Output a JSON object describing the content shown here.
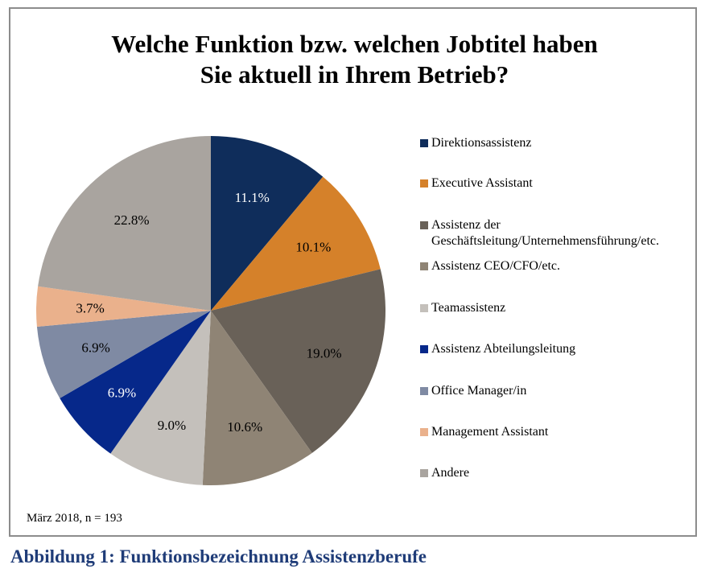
{
  "chart_data": {
    "type": "pie",
    "title_lines": [
      "Welche Funktion bzw. welchen Jobtitel haben",
      "Sie aktuell in Ihrem Betrieb?"
    ],
    "categories": [
      "Direktionsassistenz",
      "Executive Assistant",
      "Assistenz der Geschäftsleitung/Unternehmensführung/etc.",
      "Assistenz CEO/CFO/etc.",
      "Teamassistenz",
      "Assistenz Abteilungsleitung",
      "Office Manager/in",
      "Management Assistant",
      "Andere"
    ],
    "values": [
      11.1,
      10.1,
      19.0,
      10.6,
      9.0,
      6.9,
      6.9,
      3.7,
      22.8
    ],
    "value_labels": [
      "11.1%",
      "10.1%",
      "19.0%",
      "10.6%",
      "9.0%",
      "6.9%",
      "6.9%",
      "3.7%",
      "22.8%"
    ],
    "colors": [
      "#0f2d5b",
      "#d5812a",
      "#696158",
      "#8f8475",
      "#c4c0bb",
      "#06288a",
      "#7f8aa3",
      "#eab18c",
      "#a9a49f"
    ],
    "label_colors": [
      "#ffffff",
      "#000000",
      "#000000",
      "#000000",
      "#000000",
      "#ffffff",
      "#000000",
      "#000000",
      "#000000"
    ],
    "legend": {
      "position": "right",
      "items": [
        {
          "lines": [
            "Direktionsassistenz"
          ],
          "color": "#0f2d5b"
        },
        {
          "lines": [
            "Executive Assistant"
          ],
          "color": "#d5812a"
        },
        {
          "lines": [
            "Assistenz der",
            "Geschäftsleitung/Unternehmensführung/etc."
          ],
          "color": "#696158"
        },
        {
          "lines": [
            "Assistenz CEO/CFO/etc."
          ],
          "color": "#8f8475"
        },
        {
          "lines": [
            "Teamassistenz"
          ],
          "color": "#c4c0bb"
        },
        {
          "lines": [
            "Assistenz Abteilungsleitung"
          ],
          "color": "#06288a"
        },
        {
          "lines": [
            "Office Manager/in"
          ],
          "color": "#7f8aa3"
        },
        {
          "lines": [
            "Management Assistant"
          ],
          "color": "#eab18c"
        },
        {
          "lines": [
            "Andere"
          ],
          "color": "#a9a49f"
        }
      ]
    },
    "start_angle": "12 o'clock, clockwise"
  },
  "note": "März 2018, n = 193",
  "caption": "Abbildung 1: Funktionsbezeichnung Assistenzberufe",
  "caption_color": "#1f3c78"
}
